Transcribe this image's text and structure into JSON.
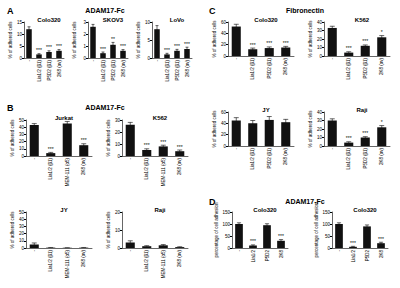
{
  "panels": [
    {
      "label": "A",
      "title": "ADAM17-Fc"
    },
    {
      "label": "B",
      "title": "ADAM17-Fc"
    },
    {
      "label": "C",
      "title": "Fibronectin"
    },
    {
      "label": "D",
      "title": "ADAM17-Fc"
    }
  ],
  "chart_data": [
    {
      "panel": "A",
      "type": "bar",
      "title": "Colo320",
      "y_label": "% of adhered cells",
      "categories": [
        "-",
        "Lia1/2 (β1)",
        "P5D2 (β1)",
        "2K8 (αv)"
      ],
      "values": [
        12,
        1.5,
        2.5,
        3
      ],
      "errors": [
        1,
        0.3,
        0.5,
        0.5
      ],
      "significance": [
        null,
        "***",
        "***",
        "***"
      ],
      "ylim": [
        0,
        15
      ],
      "yticks": [
        0,
        5,
        10,
        15
      ],
      "color": "#111111",
      "grid": false
    },
    {
      "panel": "A",
      "type": "bar",
      "title": "SKOV3",
      "y_label": "% of adhered cells",
      "categories": [
        "-",
        "Lia1/2 (β1)",
        "P5D2 (β1)",
        "2K8 (αv)"
      ],
      "values": [
        2.6,
        0.4,
        1.1,
        0.6
      ],
      "errors": [
        0.2,
        0.1,
        0.2,
        0.1
      ],
      "significance": [
        null,
        "***",
        "**",
        "***"
      ],
      "ylim": [
        0,
        3
      ],
      "yticks": [
        0,
        1,
        2,
        3
      ],
      "color": "#111111",
      "grid": false
    },
    {
      "panel": "A",
      "type": "bar",
      "title": "LoVo",
      "y_label": "% of adhered cells",
      "categories": [
        "-",
        "Lia1/2 (β1)",
        "P5D2 (β1)",
        "2K8 (αv)"
      ],
      "values": [
        8,
        1,
        2,
        2.5
      ],
      "errors": [
        1,
        0.3,
        0.4,
        0.5
      ],
      "significance": [
        null,
        "***",
        "***",
        "***"
      ],
      "ylim": [
        0,
        10
      ],
      "yticks": [
        0,
        5,
        10
      ],
      "color": "#111111",
      "grid": false
    },
    {
      "panel": "B",
      "type": "bar",
      "title": "Jurkat",
      "y_label": "% of adhered cells",
      "categories": [
        "-",
        "Lia1/2 (β1)",
        "MEM-111 (α5)",
        "2K8 (αv)"
      ],
      "values": [
        43,
        4,
        45,
        15
      ],
      "errors": [
        2,
        1,
        3,
        2
      ],
      "significance": [
        null,
        "***",
        null,
        "***"
      ],
      "ylim": [
        0,
        50
      ],
      "yticks": [
        0,
        10,
        20,
        30,
        40,
        50
      ],
      "color": "#111111",
      "grid": false
    },
    {
      "panel": "B",
      "type": "bar",
      "title": "K562",
      "y_label": "% of adhered cells",
      "categories": [
        "-",
        "Lia1/2 (β1)",
        "MEM-111 (α5)",
        "2K8 (αv)"
      ],
      "values": [
        26,
        5,
        8,
        4
      ],
      "errors": [
        2,
        1,
        1,
        1
      ],
      "significance": [
        null,
        "***",
        "***",
        "***"
      ],
      "ylim": [
        0,
        30
      ],
      "yticks": [
        0,
        10,
        20,
        30
      ],
      "color": "#111111",
      "grid": false
    },
    {
      "panel": "B",
      "type": "bar",
      "title": "JY",
      "y_label": "% of adhered cells",
      "categories": [
        "-",
        "Lia1/2 (β1)",
        "MEM-111 (α5)",
        "2K8 (αv)"
      ],
      "values": [
        5,
        0.5,
        0.3,
        0.5
      ],
      "errors": [
        2,
        0.2,
        0.1,
        0.2
      ],
      "significance": [
        null,
        null,
        null,
        null
      ],
      "ylim": [
        0,
        50
      ],
      "yticks": [
        0,
        10,
        20,
        30,
        40,
        50
      ],
      "color": "#111111",
      "grid": false
    },
    {
      "panel": "B",
      "type": "bar",
      "title": "Raji",
      "y_label": "% of adhered cells",
      "categories": [
        "-",
        "Lia1/2 (β1)",
        "MEM-111 (α5)",
        "2K8 (αv)"
      ],
      "values": [
        3,
        1,
        1.5,
        0.5
      ],
      "errors": [
        1,
        0.3,
        0.4,
        0.2
      ],
      "significance": [
        null,
        null,
        null,
        null
      ],
      "ylim": [
        0,
        20
      ],
      "yticks": [
        0,
        10,
        20
      ],
      "color": "#111111",
      "grid": false
    },
    {
      "panel": "C",
      "type": "bar",
      "title": "Colo320",
      "y_label": "% of adhered cells",
      "categories": [
        "-",
        "Lia1/2 (β1)",
        "P5D2 (β1)",
        "2K8 (αv)"
      ],
      "values": [
        52,
        12,
        14,
        15
      ],
      "errors": [
        4,
        2,
        2,
        2
      ],
      "significance": [
        null,
        "***",
        "***",
        "***"
      ],
      "ylim": [
        0,
        60
      ],
      "yticks": [
        0,
        20,
        40,
        60
      ],
      "color": "#111111",
      "grid": false
    },
    {
      "panel": "C",
      "type": "bar",
      "title": "K562",
      "y_label": "% of adhered cells",
      "categories": [
        "-",
        "Lia1/2 (β1)",
        "P5D2 (β1)",
        "2K8 (αv)"
      ],
      "values": [
        33,
        4,
        12,
        22
      ],
      "errors": [
        2,
        1,
        1,
        2
      ],
      "significance": [
        null,
        "***",
        "***",
        "*"
      ],
      "ylim": [
        0,
        40
      ],
      "yticks": [
        0,
        10,
        20,
        30,
        40
      ],
      "color": "#111111",
      "grid": false
    },
    {
      "panel": "C",
      "type": "bar",
      "title": "JY",
      "y_label": "% of adhered cells",
      "categories": [
        "-",
        "Lia1/2 (β1)",
        "P5D2 (β1)",
        "2K8 (αv)"
      ],
      "values": [
        45,
        40,
        46,
        42
      ],
      "errors": [
        5,
        5,
        6,
        5
      ],
      "significance": [
        null,
        null,
        null,
        null
      ],
      "ylim": [
        0,
        60
      ],
      "yticks": [
        0,
        20,
        40,
        60
      ],
      "color": "#111111",
      "grid": false
    },
    {
      "panel": "C",
      "type": "bar",
      "title": "Raji",
      "y_label": "% of adhered cells",
      "categories": [
        "-",
        "Lia1/2 (β1)",
        "P5D2 (β1)",
        "2K8 (αv)"
      ],
      "values": [
        30,
        4,
        10,
        22
      ],
      "errors": [
        2,
        1,
        1,
        2
      ],
      "significance": [
        null,
        "***",
        "***",
        "*"
      ],
      "ylim": [
        0,
        40
      ],
      "yticks": [
        0,
        10,
        20,
        30,
        40
      ],
      "color": "#111111",
      "grid": false
    },
    {
      "panel": "D",
      "type": "bar",
      "title": "Colo320",
      "y_label": "percentage of cell adhesion",
      "categories": [
        "-",
        "Lia1/2",
        "P5D2",
        "2K8"
      ],
      "values": [
        100,
        10,
        95,
        30
      ],
      "errors": [
        5,
        3,
        6,
        5
      ],
      "significance": [
        null,
        "***",
        null,
        "***"
      ],
      "ylim": [
        0,
        150
      ],
      "yticks": [
        0,
        50,
        100,
        150
      ],
      "color": "#111111",
      "grid": false
    },
    {
      "panel": "D",
      "type": "bar",
      "title": "Colo320",
      "y_label": "percentage of cell adhesion",
      "categories": [
        "-",
        "Lia1/2",
        "P5D2",
        "2K8"
      ],
      "values": [
        100,
        5,
        90,
        20
      ],
      "errors": [
        5,
        2,
        6,
        4
      ],
      "significance": [
        null,
        "***",
        null,
        "***"
      ],
      "ylim": [
        0,
        150
      ],
      "yticks": [
        0,
        50,
        100,
        150
      ],
      "color": "#111111",
      "grid": false
    }
  ]
}
